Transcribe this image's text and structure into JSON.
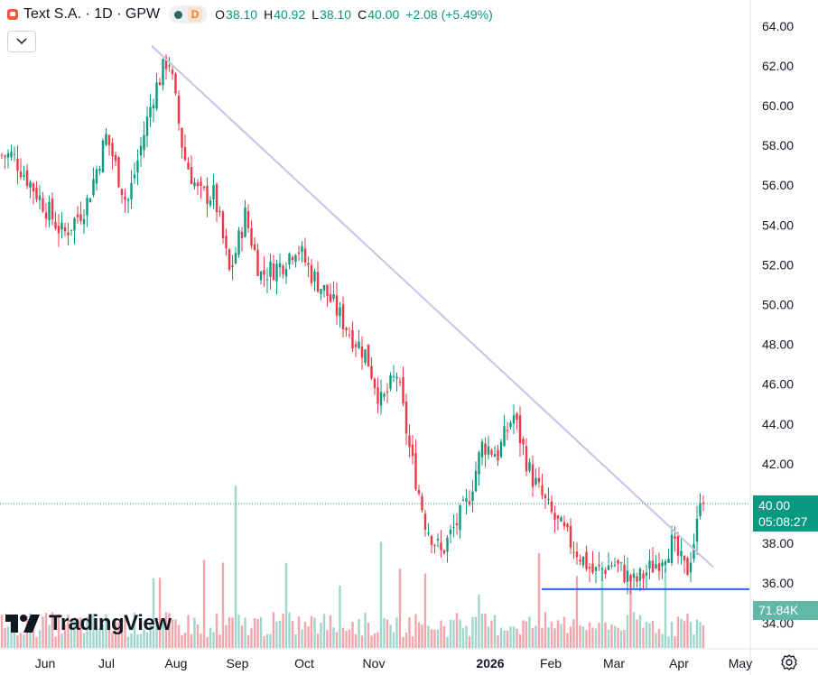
{
  "legend": {
    "symbol": "Text S.A. · 1D · GPW",
    "interval_badge": "D",
    "open_label": "O",
    "open": "38.10",
    "high_label": "H",
    "high": "40.92",
    "low_label": "L",
    "low": "38.10",
    "close_label": "C",
    "close": "40.00",
    "change": "+2.08 (+5.49%)"
  },
  "last_price": {
    "value": "40.00",
    "countdown": "05:08:27"
  },
  "volume_label": "71.84K",
  "logo_text": "TradingView",
  "colors": {
    "up": "#089981",
    "down": "#f23645",
    "trendline": "#c7c2e6",
    "support": "#2962ff",
    "volume_up": "#9fd6cc",
    "volume_down": "#f4a5ab"
  },
  "chart_data": {
    "type": "candlestick",
    "y_axis": {
      "ticks": [
        "64.00",
        "62.00",
        "60.00",
        "58.00",
        "56.00",
        "54.00",
        "52.00",
        "50.00",
        "48.00",
        "46.00",
        "44.00",
        "42.00",
        "40.00",
        "38.00",
        "36.00",
        "34.00"
      ],
      "range": [
        34,
        64
      ],
      "position": "right"
    },
    "x_axis": {
      "ticks": [
        "Jun",
        "Jul",
        "Aug",
        "Sep",
        "Oct",
        "Nov",
        "2026",
        "Feb",
        "Mar",
        "Apr",
        "May"
      ]
    },
    "anchors": [
      [
        "Jun",
        57.5
      ],
      [
        "Jun",
        55.5
      ],
      [
        "Jun",
        53.5
      ],
      [
        "Jul",
        55.0
      ],
      [
        "Jul",
        58.5
      ],
      [
        "Jul",
        55.0
      ],
      [
        "Aug",
        60.5
      ],
      [
        "Aug",
        62.5
      ],
      [
        "Aug",
        57.5
      ],
      [
        "Aug",
        55.5
      ],
      [
        "Sep",
        55.5
      ],
      [
        "Sep",
        51.5
      ],
      [
        "Sep",
        54.5
      ],
      [
        "Sep",
        51.5
      ],
      [
        "Oct",
        52.0
      ],
      [
        "Oct",
        53.0
      ],
      [
        "Oct",
        51.5
      ],
      [
        "Oct",
        50.5
      ],
      [
        "Nov",
        48.5
      ],
      [
        "Nov",
        47.5
      ],
      [
        "Nov",
        45.0
      ],
      [
        "Nov",
        46.5
      ],
      [
        "Dec",
        42.5
      ],
      [
        "Dec",
        39.0
      ],
      [
        "Dec",
        37.5
      ],
      [
        "Dec",
        39.0
      ],
      [
        "2026",
        40.0
      ],
      [
        "2026",
        43.0
      ],
      [
        "2026",
        42.5
      ],
      [
        "2026",
        44.5
      ],
      [
        "Feb",
        41.5
      ],
      [
        "Feb",
        39.5
      ],
      [
        "Feb",
        38.0
      ],
      [
        "Mar",
        36.5
      ],
      [
        "Mar",
        37.0
      ],
      [
        "Mar",
        36.0
      ],
      [
        "Apr",
        37.0
      ],
      [
        "Apr",
        38.0
      ],
      [
        "Apr",
        36.5
      ],
      [
        "Apr",
        40.0
      ]
    ],
    "trendline": {
      "from": [
        "Jul",
        63.0
      ],
      "to": [
        "Apr",
        36.8
      ]
    },
    "support_line": {
      "value": 35.7,
      "from": "Feb",
      "to": "May"
    },
    "last_value": 40.0,
    "volume_last": "71.84K",
    "spike_volume_index": "Sep"
  }
}
